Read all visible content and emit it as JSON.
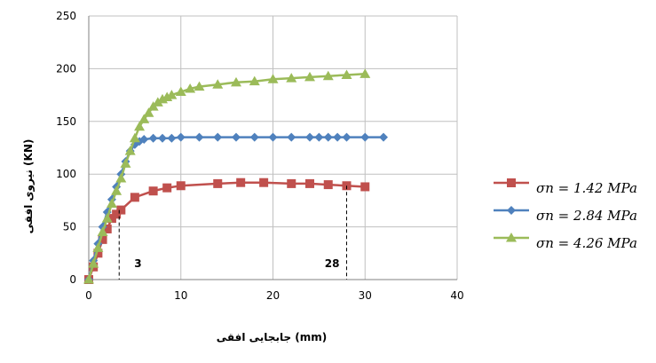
{
  "chart_data": {
    "type": "line",
    "title": "",
    "xlabel": "جابجایی افقی (mm)",
    "ylabel": "نیروی افقی (KN)",
    "xlim": [
      0,
      40
    ],
    "ylim": [
      0,
      250
    ],
    "xticks": [
      0,
      10,
      20,
      30,
      40
    ],
    "yticks": [
      0,
      50,
      100,
      150,
      200,
      250
    ],
    "grid": true,
    "legend_position": "right",
    "series": [
      {
        "name": "σn = 1.42 MPa",
        "color": "#C0504D",
        "marker": "square",
        "x": [
          0,
          0.5,
          1,
          1.5,
          2,
          2.5,
          3,
          3.5,
          5,
          7,
          8.5,
          10,
          14,
          16.5,
          19,
          22,
          24,
          26,
          28,
          30
        ],
        "y": [
          0,
          12,
          25,
          38,
          48,
          58,
          62,
          66,
          78,
          84,
          87,
          89,
          91,
          92,
          92,
          91,
          91,
          90,
          89,
          88
        ]
      },
      {
        "name": "σn = 2.84 MPa",
        "color": "#4F81BD",
        "marker": "diamond",
        "x": [
          0,
          0.5,
          1,
          1.5,
          2,
          2.5,
          3,
          3.5,
          4,
          4.5,
          5,
          5.5,
          6,
          7,
          8,
          9,
          10,
          12,
          14,
          16,
          18,
          20,
          22,
          24,
          25,
          26,
          27,
          28,
          30,
          32
        ],
        "y": [
          0,
          18,
          34,
          50,
          64,
          76,
          88,
          100,
          112,
          122,
          128,
          131,
          133,
          134,
          134,
          134,
          135,
          135,
          135,
          135,
          135,
          135,
          135,
          135,
          135,
          135,
          135,
          135,
          135,
          135
        ]
      },
      {
        "name": "σn = 4.26 MPa",
        "color": "#9BBB59",
        "marker": "triangle",
        "x": [
          0,
          0.5,
          1,
          1.5,
          2,
          2.5,
          3,
          3.5,
          4,
          4.5,
          5,
          5.5,
          6,
          6.5,
          7,
          7.5,
          8,
          8.5,
          9,
          10,
          11,
          12,
          14,
          16,
          18,
          20,
          22,
          24,
          26,
          28,
          30
        ],
        "y": [
          0,
          15,
          30,
          45,
          58,
          72,
          84,
          96,
          110,
          122,
          134,
          145,
          152,
          158,
          164,
          168,
          171,
          173,
          175,
          178,
          181,
          183,
          185,
          187,
          188,
          190,
          191,
          192,
          193,
          194,
          195
        ]
      }
    ],
    "annotations": [
      {
        "text": "3",
        "x": 3.3,
        "y": 66
      },
      {
        "text": "28",
        "x": 28,
        "y": 89
      }
    ]
  }
}
